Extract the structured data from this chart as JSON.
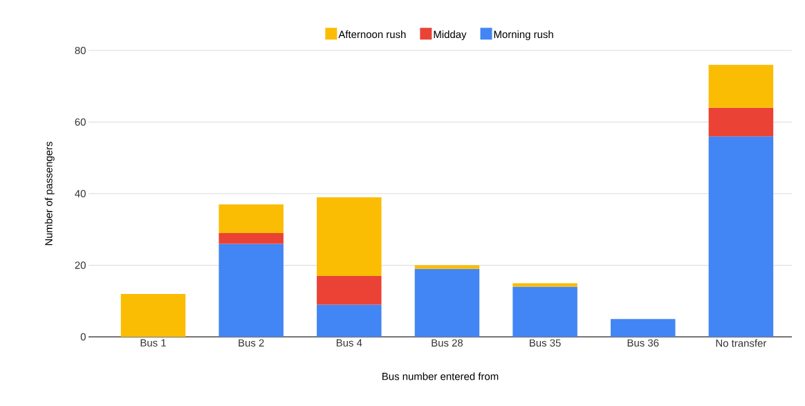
{
  "chart_data": {
    "type": "bar",
    "stacked": true,
    "xlabel": "Bus number entered from",
    "ylabel": "Number of passengers",
    "categories": [
      "Bus 1",
      "Bus 2",
      "Bus 4",
      "Bus 28",
      "Bus 35",
      "Bus 36",
      "No transfer"
    ],
    "series": [
      {
        "name": "Morning rush",
        "color": "#4285f4",
        "values": [
          null,
          26,
          9,
          19,
          14,
          5,
          56
        ]
      },
      {
        "name": "Midday",
        "color": "#ea4335",
        "values": [
          null,
          3,
          8,
          null,
          null,
          null,
          8
        ]
      },
      {
        "name": "Afternoon rush",
        "color": "#fbbc04",
        "values": [
          12,
          8,
          22,
          1,
          1,
          null,
          12
        ]
      }
    ],
    "ylim": [
      0,
      80
    ],
    "yticks": [
      0,
      20,
      40,
      60,
      80
    ],
    "grid": "y",
    "legend": "top"
  }
}
